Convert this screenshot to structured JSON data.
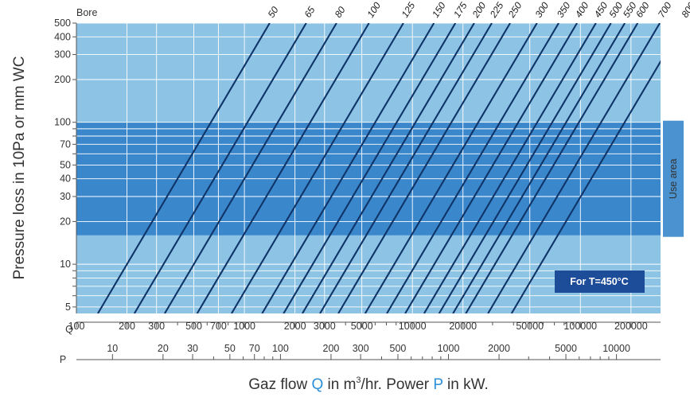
{
  "chart_data": {
    "type": "line",
    "title": "",
    "ylabel": "Pressure loss in 10Pa or mm WC",
    "xlabel_parts": [
      "Gaz flow ",
      "Q",
      " in m",
      "3",
      "/hr. Power ",
      "P",
      " in kW."
    ],
    "bore_label": "Bore",
    "use_area_label": "Use area",
    "temperature_note": "For T=450°C",
    "y_scale": "log",
    "ylim": [
      4.5,
      500
    ],
    "y_ticks": [
      5,
      10,
      20,
      30,
      40,
      50,
      70,
      100,
      200,
      300,
      400,
      500
    ],
    "y_grid": [
      5,
      6,
      7,
      8,
      9,
      10,
      20,
      30,
      40,
      50,
      60,
      70,
      80,
      90,
      100,
      200,
      300,
      400,
      500
    ],
    "use_area_range": [
      16,
      100
    ],
    "x_scale": "log",
    "q_axis": {
      "label": "Q",
      "range": [
        100,
        300000
      ],
      "tick_labels": [
        100,
        200,
        300,
        500,
        700,
        1000,
        2000,
        3000,
        5000,
        10000,
        20000,
        50000,
        100000,
        200000
      ],
      "minor_ticks": [
        400,
        600,
        800,
        900,
        4000,
        6000,
        7000,
        8000,
        9000,
        30000,
        40000,
        60000,
        70000,
        80000,
        90000
      ]
    },
    "p_axis": {
      "label": "P",
      "range": [
        6.1,
        18300
      ],
      "tick_labels": [
        10,
        20,
        30,
        50,
        70,
        100,
        200,
        300,
        500,
        1000,
        2000,
        5000,
        10000
      ],
      "minor_ticks": [
        40,
        60,
        80,
        90,
        400,
        600,
        700,
        800,
        900,
        3000,
        4000,
        6000,
        7000,
        8000,
        9000
      ]
    },
    "x_grid": [
      100,
      200,
      300,
      500,
      700,
      1000,
      2000,
      3000,
      5000,
      10000,
      20000,
      50000,
      100000,
      200000
    ],
    "series": [
      {
        "name": "50",
        "q_at_dp10": 200
      },
      {
        "name": "65",
        "q_at_dp10": 330
      },
      {
        "name": "80",
        "q_at_dp10": 500
      },
      {
        "name": "100",
        "q_at_dp10": 780
      },
      {
        "name": "125",
        "q_at_dp10": 1250
      },
      {
        "name": "150",
        "q_at_dp10": 1900
      },
      {
        "name": "175",
        "q_at_dp10": 2550
      },
      {
        "name": "200",
        "q_at_dp10": 3300
      },
      {
        "name": "225",
        "q_at_dp10": 4200
      },
      {
        "name": "250",
        "q_at_dp10": 5400
      },
      {
        "name": "300",
        "q_at_dp10": 7800
      },
      {
        "name": "350",
        "q_at_dp10": 10500
      },
      {
        "name": "400",
        "q_at_dp10": 13500
      },
      {
        "name": "450",
        "q_at_dp10": 17500
      },
      {
        "name": "500",
        "q_at_dp10": 21500
      },
      {
        "name": "550",
        "q_at_dp10": 26000
      },
      {
        "name": "600",
        "q_at_dp10": 31000
      },
      {
        "name": "700",
        "q_at_dp10": 42000
      },
      {
        "name": "800",
        "q_at_dp10": 58000
      }
    ],
    "colors": {
      "plot_bg": "#8dc3e4",
      "use_band": "#3b87cc",
      "use_tab": "#4a92d0",
      "grid": "#ffffff",
      "lines": "#0f3468",
      "note_box": "#1d4c99",
      "axis": "#555555",
      "q_highlight": "#2b8fd8",
      "p_highlight": "#2b8fd8"
    }
  }
}
